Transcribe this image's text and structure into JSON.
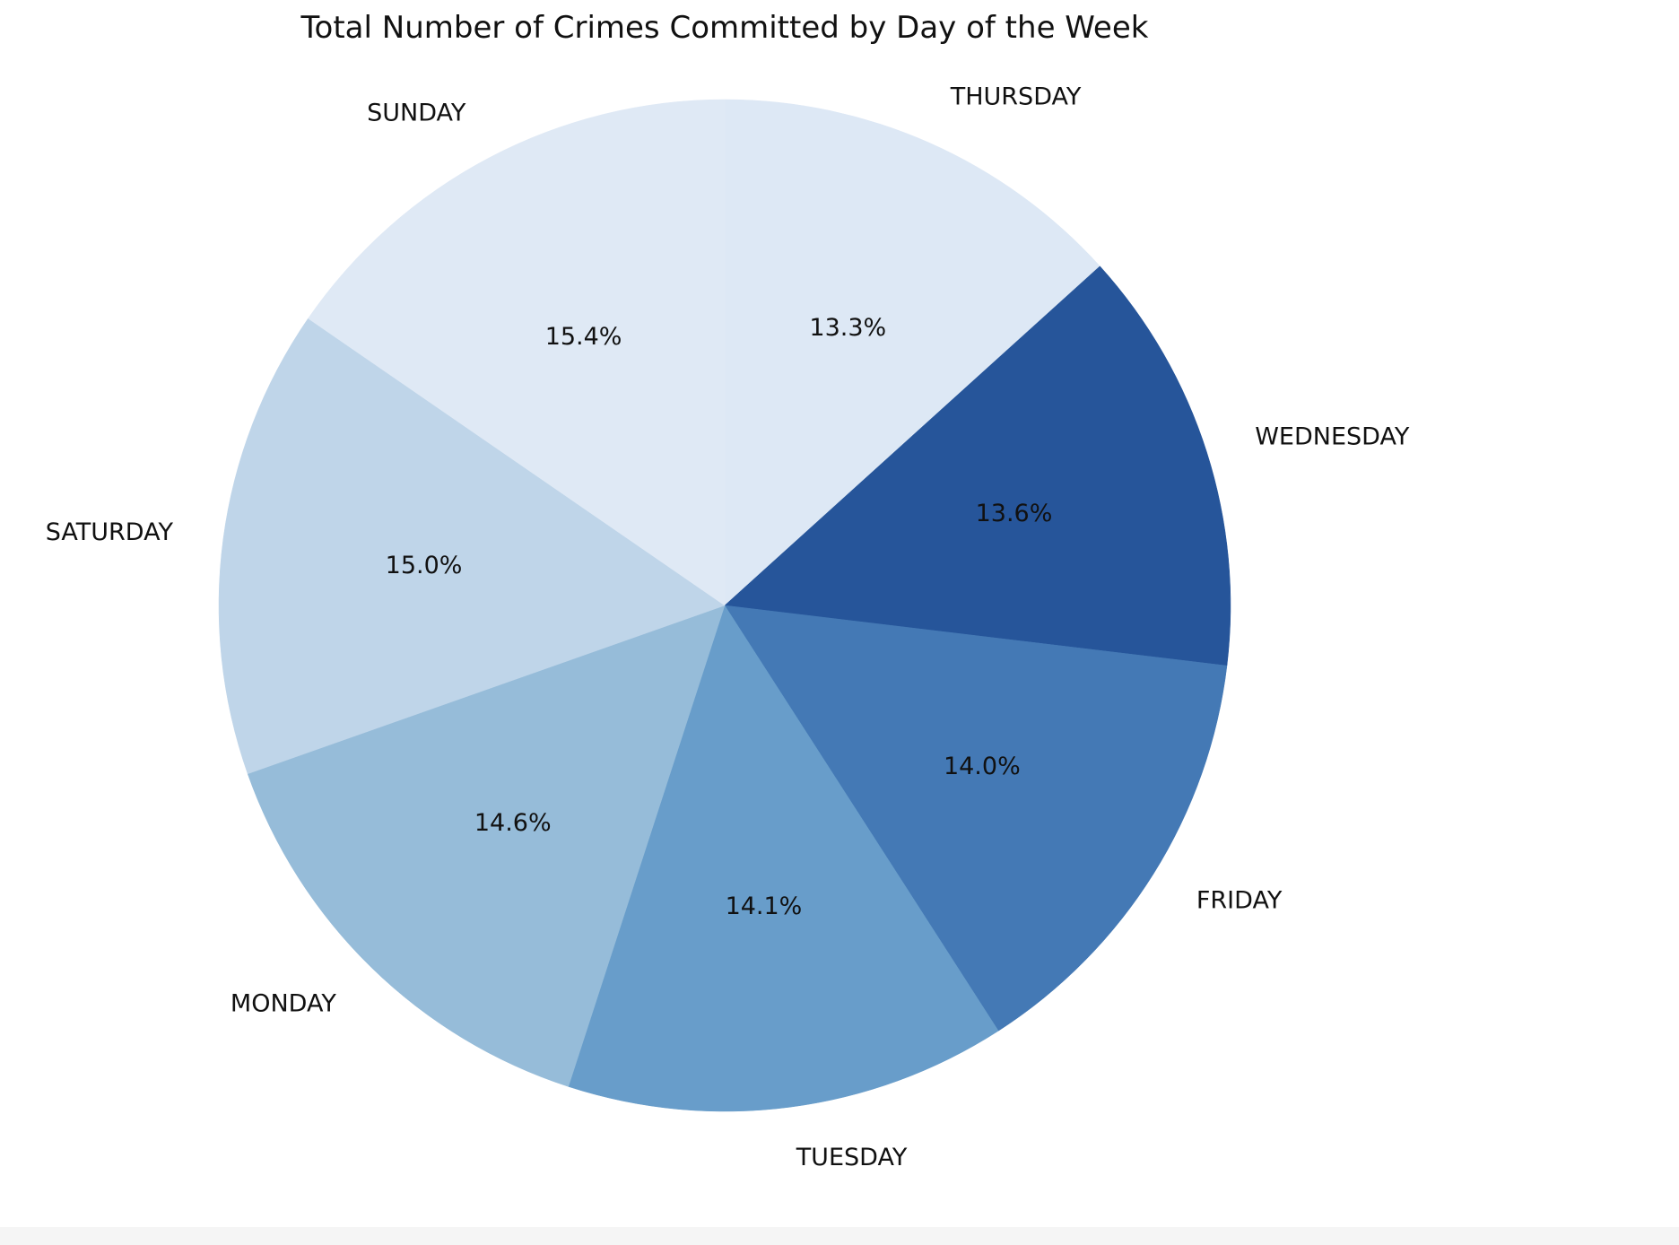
{
  "chart_data": {
    "type": "pie",
    "title": "Total Number of Crimes Committed by Day of the Week",
    "start_angle_deg": 90,
    "direction": "clockwise",
    "slices": [
      {
        "label": "THURSDAY",
        "value": 13.3,
        "pct_label": "13.3%",
        "color": "#dde8f5"
      },
      {
        "label": "WEDNESDAY",
        "value": 13.6,
        "pct_label": "13.6%",
        "color": "#26559a"
      },
      {
        "label": "FRIDAY",
        "value": 14.0,
        "pct_label": "14.0%",
        "color": "#4479b5"
      },
      {
        "label": "TUESDAY",
        "value": 14.1,
        "pct_label": "14.1%",
        "color": "#689dca"
      },
      {
        "label": "MONDAY",
        "value": 14.6,
        "pct_label": "14.6%",
        "color": "#96bcd9"
      },
      {
        "label": "SATURDAY",
        "value": 15.0,
        "pct_label": "15.0%",
        "color": "#bfd5e9"
      },
      {
        "label": "SUNDAY",
        "value": 15.4,
        "pct_label": "15.4%",
        "color": "#dfe9f5"
      }
    ]
  }
}
